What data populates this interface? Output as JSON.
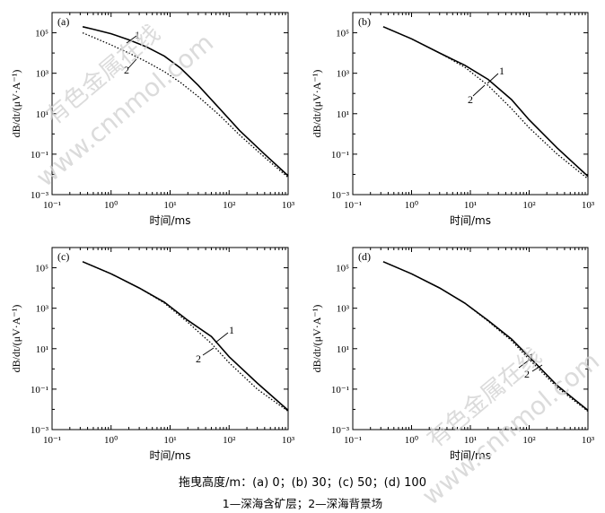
{
  "figure": {
    "caption_line1": "拖曳高度/m：(a) 0；(b) 30；(c) 50；(d) 100",
    "caption_line2": "1—深海含矿层；2—深海背景场",
    "watermark_text_cn": "有色金属在线",
    "watermark_text_en": "www.cnnmol.com"
  },
  "chart_data": [
    {
      "type": "line",
      "panel_label": "(a)",
      "x_scale": "log",
      "y_scale": "log",
      "xlabel": "时间/ms",
      "ylabel": "dB/dt/(μV·A⁻¹)",
      "xlim": [
        0.1,
        1000
      ],
      "ylim": [
        0.001,
        1000000
      ],
      "xticks": [
        0.1,
        1,
        10,
        100,
        1000
      ],
      "xtick_labels": [
        "10⁻¹",
        "10⁰",
        "10¹",
        "10²",
        "10³"
      ],
      "yticks": [
        0.001,
        0.1,
        10,
        1000,
        100000
      ],
      "ytick_labels": [
        "10⁻³",
        "10⁻¹",
        "10¹",
        "10³",
        "10⁵"
      ],
      "series": [
        {
          "name": "1",
          "style": "solid",
          "x": [
            0.33,
            0.5,
            1,
            2,
            4,
            8,
            15,
            30,
            70,
            150,
            400,
            1000
          ],
          "y": [
            200000,
            150000,
            90000,
            45000,
            20000,
            7000,
            1800,
            250,
            17,
            1.5,
            0.1,
            0.0085
          ]
        },
        {
          "name": "2",
          "style": "dotted",
          "x": [
            0.33,
            0.5,
            1,
            2,
            4,
            8,
            15,
            30,
            70,
            150,
            400,
            1000
          ],
          "y": [
            100000,
            60000,
            25000,
            10000,
            3700,
            1200,
            350,
            70,
            8,
            0.9,
            0.07,
            0.007
          ]
        }
      ],
      "curve_labels": [
        {
          "text": "1"
        },
        {
          "text": "2"
        }
      ]
    },
    {
      "type": "line",
      "panel_label": "(b)",
      "x_scale": "log",
      "y_scale": "log",
      "xlabel": "时间/ms",
      "ylabel": "dB/dt/(μV·A⁻¹)",
      "xlim": [
        0.1,
        1000
      ],
      "ylim": [
        0.001,
        1000000
      ],
      "xticks": [
        0.1,
        1,
        10,
        100,
        1000
      ],
      "xtick_labels": [
        "10⁻¹",
        "10⁰",
        "10¹",
        "10²",
        "10³"
      ],
      "yticks": [
        0.001,
        0.1,
        10,
        1000,
        100000
      ],
      "ytick_labels": [
        "10⁻³",
        "10⁻¹",
        "10¹",
        "10³",
        "10⁵"
      ],
      "series": [
        {
          "name": "1",
          "style": "solid",
          "x": [
            0.33,
            1,
            3,
            8,
            20,
            50,
            100,
            300,
            1000
          ],
          "y": [
            200000,
            50000,
            10000,
            2500,
            500,
            50,
            5,
            0.2,
            0.008
          ]
        },
        {
          "name": "2",
          "style": "dotted",
          "x": [
            0.33,
            1,
            3,
            8,
            20,
            50,
            100,
            300,
            1000
          ],
          "y": [
            200000,
            50000,
            10000,
            2000,
            250,
            18,
            2,
            0.1,
            0.006
          ]
        }
      ],
      "curve_labels": [
        {
          "text": "1"
        },
        {
          "text": "2"
        }
      ]
    },
    {
      "type": "line",
      "panel_label": "(c)",
      "x_scale": "log",
      "y_scale": "log",
      "xlabel": "时间/ms",
      "ylabel": "dB/dt/(μV·A⁻¹)",
      "xlim": [
        0.1,
        1000
      ],
      "ylim": [
        0.001,
        1000000
      ],
      "xticks": [
        0.1,
        1,
        10,
        100,
        1000
      ],
      "xtick_labels": [
        "10⁻¹",
        "10⁰",
        "10¹",
        "10²",
        "10³"
      ],
      "yticks": [
        0.001,
        0.1,
        10,
        1000,
        100000
      ],
      "ytick_labels": [
        "10⁻³",
        "10⁻¹",
        "10¹",
        "10³",
        "10⁵"
      ],
      "series": [
        {
          "name": "1",
          "style": "solid",
          "x": [
            0.33,
            1,
            3,
            8,
            20,
            50,
            100,
            300,
            1000
          ],
          "y": [
            200000,
            50000,
            10000,
            2000,
            250,
            40,
            4,
            0.2,
            0.009
          ]
        },
        {
          "name": "2",
          "style": "dotted",
          "x": [
            0.33,
            1,
            3,
            8,
            20,
            50,
            100,
            300,
            1000
          ],
          "y": [
            200000,
            50000,
            10000,
            1800,
            200,
            18,
            2,
            0.1,
            0.008
          ]
        }
      ],
      "curve_labels": [
        {
          "text": "1"
        },
        {
          "text": "2"
        }
      ]
    },
    {
      "type": "line",
      "panel_label": "(d)",
      "x_scale": "log",
      "y_scale": "log",
      "xlabel": "时间/ms",
      "ylabel": "dB/dt/(μV·A⁻¹)",
      "xlim": [
        0.1,
        1000
      ],
      "ylim": [
        0.001,
        1000000
      ],
      "xticks": [
        0.1,
        1,
        10,
        100,
        1000
      ],
      "xtick_labels": [
        "10⁻¹",
        "10⁰",
        "10¹",
        "10²",
        "10³"
      ],
      "yticks": [
        0.001,
        0.1,
        10,
        1000,
        100000
      ],
      "ytick_labels": [
        "10⁻³",
        "10⁻¹",
        "10¹",
        "10³",
        "10⁵"
      ],
      "series": [
        {
          "name": "1",
          "style": "solid",
          "x": [
            0.33,
            1,
            3,
            8,
            20,
            50,
            100,
            300,
            1000
          ],
          "y": [
            200000,
            50000,
            10000,
            1800,
            250,
            30,
            4,
            0.15,
            0.009
          ]
        },
        {
          "name": "2",
          "style": "dotted",
          "x": [
            0.33,
            1,
            3,
            8,
            20,
            50,
            100,
            300,
            1000
          ],
          "y": [
            200000,
            50000,
            10000,
            1800,
            230,
            25,
            3,
            0.12,
            0.008
          ]
        }
      ],
      "curve_labels": [
        {
          "text": "1"
        },
        {
          "text": "2"
        }
      ]
    }
  ]
}
